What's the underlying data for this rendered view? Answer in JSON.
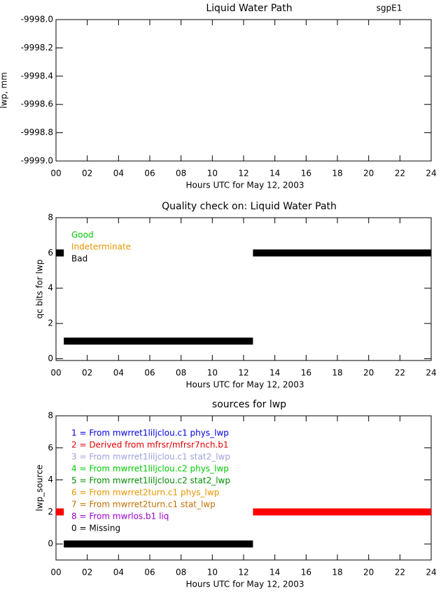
{
  "chart_data": [
    {
      "type": "timeline",
      "title": "Liquid Water Path",
      "annotation": "sgpE1",
      "y_label": "lwp, mm",
      "x_label": "Hours UTC for May 12, 2003",
      "xlim": [
        0,
        24
      ],
      "xticks": [
        {
          "value": 0,
          "label": "00"
        },
        {
          "value": 2,
          "label": "02"
        },
        {
          "value": 4,
          "label": "04"
        },
        {
          "value": 6,
          "label": "06"
        },
        {
          "value": 8,
          "label": "08"
        },
        10,
        12,
        14,
        16,
        18,
        20,
        22,
        24
      ],
      "ylim": [
        -9999.0,
        -9998.0
      ],
      "yticks": [
        {
          "value": -9999,
          "label": "-9999.0"
        },
        {
          "value": -9998.8,
          "label": "-9998.8"
        },
        {
          "value": -9998.6,
          "label": "-9998.6"
        },
        {
          "value": -9998.4,
          "label": "-9998.4"
        },
        {
          "value": -9998.2,
          "label": "-9998.2"
        },
        {
          "value": -9998,
          "label": "-9998.0"
        }
      ]
    },
    {
      "type": "timeline",
      "title": "Quality check on: Liquid Water Path",
      "y_label": "qc bits for lwp",
      "x_label": "Hours UTC for May 12, 2003",
      "xlim": [
        0,
        24
      ],
      "xticks": [
        {
          "value": 0,
          "label": "00"
        },
        {
          "value": 2,
          "label": "02"
        },
        {
          "value": 4,
          "label": "04"
        },
        {
          "value": 6,
          "label": "06"
        },
        {
          "value": 8,
          "label": "08"
        },
        10,
        12,
        14,
        16,
        18,
        20,
        22,
        24
      ],
      "ylim": [
        -0.1,
        8
      ],
      "yticks": [
        0,
        2,
        4,
        6,
        8
      ],
      "legend": [
        {
          "label": "Good",
          "color": "#00c800"
        },
        {
          "label": "Indeterminate",
          "color": "#e69500"
        },
        {
          "label": "Bad",
          "color": "#000000"
        }
      ],
      "bars": [
        {
          "start": 0,
          "end": 0.5,
          "value": 6,
          "color": "#000000"
        },
        {
          "start": 0.5,
          "end": 12.6,
          "value": 1,
          "color": "#000000"
        },
        {
          "start": 12.6,
          "end": 24,
          "value": 6,
          "color": "#000000"
        }
      ]
    },
    {
      "type": "timeline",
      "title": "sources for lwp",
      "y_label": "lwp_source",
      "x_label": "Hours UTC for May 12, 2003",
      "xlim": [
        0,
        24
      ],
      "xticks": [
        {
          "value": 0,
          "label": "00"
        },
        {
          "value": 2,
          "label": "02"
        },
        {
          "value": 4,
          "label": "04"
        },
        {
          "value": 6,
          "label": "06"
        },
        {
          "value": 8,
          "label": "08"
        },
        10,
        12,
        14,
        16,
        18,
        20,
        22,
        24
      ],
      "ylim": [
        -1,
        8
      ],
      "yticks": [
        0,
        2,
        4,
        6,
        8
      ],
      "legend": [
        {
          "label": "1 = From mwrret1liljclou.c1 phys_lwp",
          "color": "#0000e0"
        },
        {
          "label": "2 = Derived from mfrsr/mfrsr7nch.b1",
          "color": "#e00000"
        },
        {
          "label": "3 = From mwrret1liljclou.c1 stat2_lwp",
          "color": "#a0a0e0"
        },
        {
          "label": "4 = From mwrret1liljclou.c2 phys_lwp",
          "color": "#00c800"
        },
        {
          "label": "5 = From mwrret1liljclou.c2 stat2_lwp",
          "color": "#008c00"
        },
        {
          "label": "6 = From mwrret2turn.c1 phys_lwp",
          "color": "#e69500"
        },
        {
          "label": "7 = From mwrret2turn.c1 stat_lwp",
          "color": "#c07000"
        },
        {
          "label": "8 = From mwrlos.b1 liq",
          "color": "#9a00c8"
        },
        {
          "label": "0 = Missing",
          "color": "#000000"
        }
      ],
      "bars": [
        {
          "start": 0,
          "end": 0.5,
          "value": 2,
          "color": "#ff0000"
        },
        {
          "start": 0.5,
          "end": 12.6,
          "value": 0,
          "color": "#000000"
        },
        {
          "start": 12.6,
          "end": 24,
          "value": 2,
          "color": "#ff0000"
        }
      ]
    }
  ]
}
